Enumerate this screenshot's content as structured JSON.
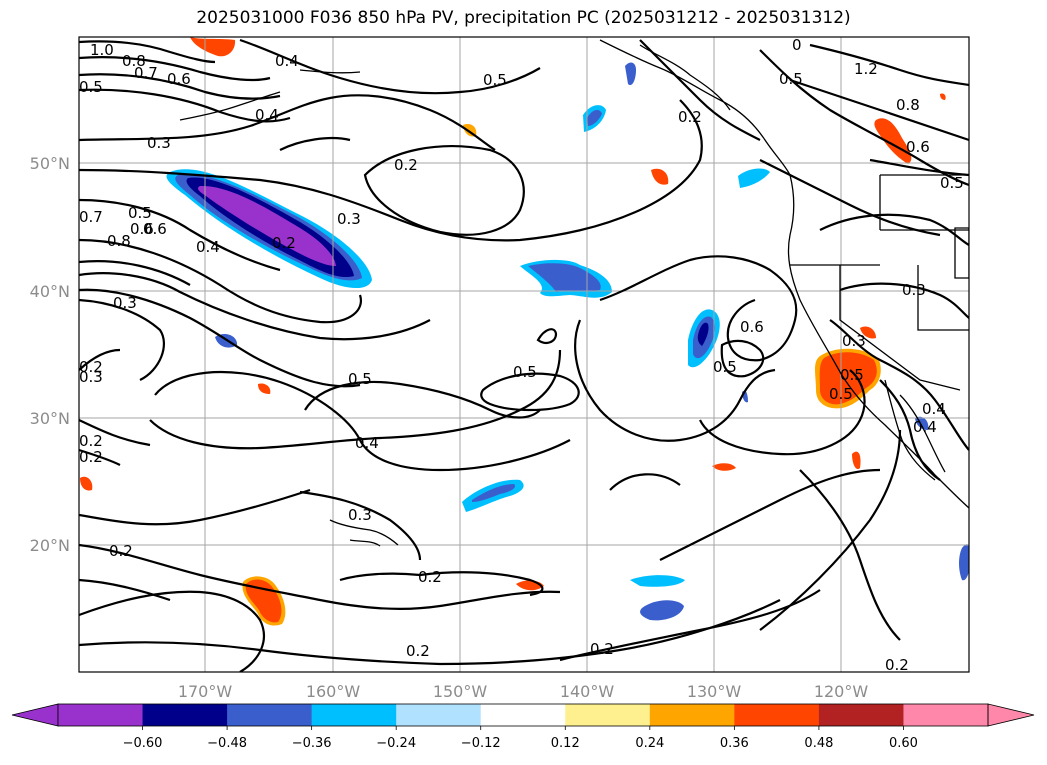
{
  "title": "2025031000 F036 850 hPa PV, precipitation PC (2025031212 - 2025031312)",
  "lat_labels": [
    "50°N",
    "40°N",
    "30°N",
    "20°N"
  ],
  "lon_labels": [
    "170°W",
    "160°W",
    "150°W",
    "140°W",
    "130°W",
    "120°W"
  ],
  "colorbar": {
    "colors": [
      "#9932cc",
      "#00008b",
      "#3a5fcd",
      "#00bfff",
      "#b0e2ff",
      "#ffffff",
      "#fff08f",
      "#ffa500",
      "#ff4500",
      "#b22222",
      "#ff88aa"
    ],
    "tick_labels": [
      "−0.60",
      "−0.48",
      "−0.36",
      "−0.24",
      "−0.12",
      "0.12",
      "0.24",
      "0.36",
      "0.48",
      "0.60"
    ]
  },
  "contour_labels": [
    "1.0",
    "0.8",
    "0.7",
    "0.6",
    "0.5",
    "0.4",
    "0.4",
    "0.5",
    "0.3",
    "0.2",
    "0.3",
    "0.2",
    "0.5",
    "0.6",
    "0.4",
    "0.3",
    "0.3",
    "0.5",
    "0.4",
    "0.5",
    "0.6",
    "0.5",
    "0.3",
    "0.5",
    "0.4",
    "0.3",
    "0.2",
    "0.2",
    "0.2",
    "0.2",
    "0.2",
    "0.2",
    "1.2",
    "0.8",
    "0.6",
    "0.5",
    "0.3",
    "0.5",
    "0.4",
    "0.5",
    "0.2",
    "0.7",
    "0.8",
    "0.6",
    "0.2",
    "0.2",
    "0"
  ]
}
